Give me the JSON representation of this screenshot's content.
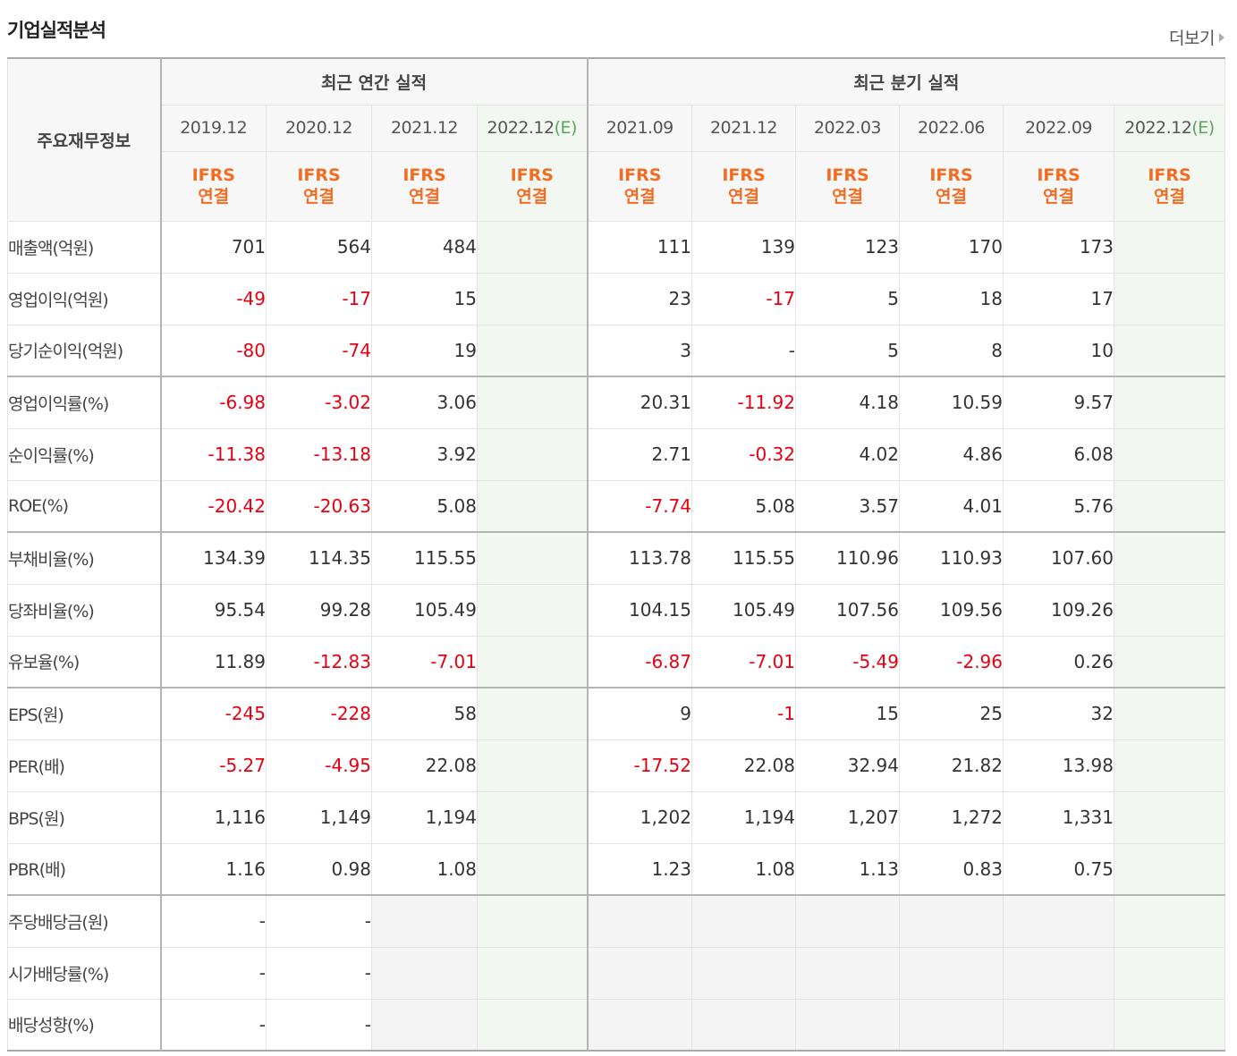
{
  "page": {
    "title": "기업실적분석",
    "more_label": "더보기"
  },
  "table": {
    "corner_label": "주요재무정보",
    "annual_header": "최근 연간 실적",
    "quarter_header": "최근 분기 실적",
    "annual_periods": [
      "2019.12",
      "2020.12",
      "2021.12",
      "2022.12"
    ],
    "annual_estimate_flags": [
      false,
      false,
      false,
      true
    ],
    "quarter_periods": [
      "2021.09",
      "2021.12",
      "2022.03",
      "2022.06",
      "2022.09",
      "2022.12"
    ],
    "quarter_estimate_flags": [
      false,
      false,
      false,
      false,
      false,
      true
    ],
    "estimate_mark": "(E)",
    "basis_line1": "IFRS",
    "basis_line2": "연결",
    "rows": [
      {
        "label": "매출액(억원)",
        "group_start": true,
        "annual": [
          "701",
          "564",
          "484",
          ""
        ],
        "quarter": [
          "111",
          "139",
          "123",
          "170",
          "173",
          ""
        ]
      },
      {
        "label": "영업이익(억원)",
        "group_start": false,
        "annual": [
          "-49",
          "-17",
          "15",
          ""
        ],
        "quarter": [
          "23",
          "-17",
          "5",
          "18",
          "17",
          ""
        ]
      },
      {
        "label": "당기순이익(억원)",
        "group_start": false,
        "annual": [
          "-80",
          "-74",
          "19",
          ""
        ],
        "quarter": [
          "3",
          "-",
          "5",
          "8",
          "10",
          ""
        ]
      },
      {
        "label": "영업이익률(%)",
        "group_start": true,
        "annual": [
          "-6.98",
          "-3.02",
          "3.06",
          ""
        ],
        "quarter": [
          "20.31",
          "-11.92",
          "4.18",
          "10.59",
          "9.57",
          ""
        ]
      },
      {
        "label": "순이익률(%)",
        "group_start": false,
        "annual": [
          "-11.38",
          "-13.18",
          "3.92",
          ""
        ],
        "quarter": [
          "2.71",
          "-0.32",
          "4.02",
          "4.86",
          "6.08",
          ""
        ]
      },
      {
        "label": "ROE(%)",
        "group_start": false,
        "annual": [
          "-20.42",
          "-20.63",
          "5.08",
          ""
        ],
        "quarter": [
          "-7.74",
          "5.08",
          "3.57",
          "4.01",
          "5.76",
          ""
        ]
      },
      {
        "label": "부채비율(%)",
        "group_start": true,
        "annual": [
          "134.39",
          "114.35",
          "115.55",
          ""
        ],
        "quarter": [
          "113.78",
          "115.55",
          "110.96",
          "110.93",
          "107.60",
          ""
        ]
      },
      {
        "label": "당좌비율(%)",
        "group_start": false,
        "annual": [
          "95.54",
          "99.28",
          "105.49",
          ""
        ],
        "quarter": [
          "104.15",
          "105.49",
          "107.56",
          "109.56",
          "109.26",
          ""
        ]
      },
      {
        "label": "유보율(%)",
        "group_start": false,
        "annual": [
          "11.89",
          "-12.83",
          "-7.01",
          ""
        ],
        "quarter": [
          "-6.87",
          "-7.01",
          "-5.49",
          "-2.96",
          "0.26",
          ""
        ]
      },
      {
        "label": "EPS(원)",
        "group_start": true,
        "annual": [
          "-245",
          "-228",
          "58",
          ""
        ],
        "quarter": [
          "9",
          "-1",
          "15",
          "25",
          "32",
          ""
        ]
      },
      {
        "label": "PER(배)",
        "group_start": false,
        "annual": [
          "-5.27",
          "-4.95",
          "22.08",
          ""
        ],
        "quarter": [
          "-17.52",
          "22.08",
          "32.94",
          "21.82",
          "13.98",
          ""
        ]
      },
      {
        "label": "BPS(원)",
        "group_start": false,
        "annual": [
          "1,116",
          "1,149",
          "1,194",
          ""
        ],
        "quarter": [
          "1,202",
          "1,194",
          "1,207",
          "1,272",
          "1,331",
          ""
        ]
      },
      {
        "label": "PBR(배)",
        "group_start": false,
        "annual": [
          "1.16",
          "0.98",
          "1.08",
          ""
        ],
        "quarter": [
          "1.23",
          "1.08",
          "1.13",
          "0.83",
          "0.75",
          ""
        ]
      },
      {
        "label": "주당배당금(원)",
        "group_start": true,
        "no_data_from": 2,
        "annual": [
          "-",
          "-",
          "",
          ""
        ],
        "quarter": [
          "",
          "",
          "",
          "",
          "",
          ""
        ]
      },
      {
        "label": "시가배당률(%)",
        "group_start": false,
        "no_data_from": 2,
        "annual": [
          "-",
          "-",
          "",
          ""
        ],
        "quarter": [
          "",
          "",
          "",
          "",
          "",
          ""
        ]
      },
      {
        "label": "배당성향(%)",
        "group_start": false,
        "no_data_from": 2,
        "annual": [
          "-",
          "-",
          "",
          ""
        ],
        "quarter": [
          "",
          "",
          "",
          "",
          "",
          ""
        ]
      }
    ]
  },
  "colors": {
    "negative": "#e60012",
    "basis_text": "#f26c22",
    "estimate_bg": "#f2f8f1",
    "estimate_mark": "#5aa65a"
  }
}
